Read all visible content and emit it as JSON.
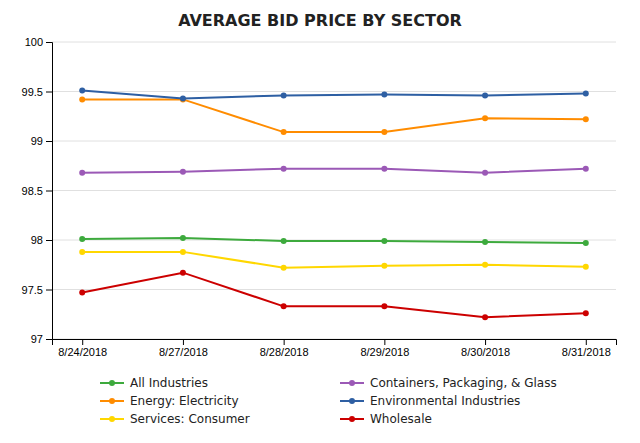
{
  "chart_data": {
    "type": "line",
    "title": "AVERAGE BID PRICE BY SECTOR",
    "categories": [
      "8/24/2018",
      "8/27/2018",
      "8/28/2018",
      "8/29/2018",
      "8/30/2018",
      "8/31/2018"
    ],
    "series": [
      {
        "name": "All Industries",
        "color": "#3DAA3D",
        "values": [
          98.01,
          98.02,
          97.99,
          97.99,
          97.98,
          97.97
        ]
      },
      {
        "name": "Energy: Electricity",
        "color": "#FF8C00",
        "values": [
          99.42,
          99.42,
          99.09,
          99.09,
          99.23,
          99.22
        ]
      },
      {
        "name": "Services: Consumer",
        "color": "#FFD700",
        "values": [
          97.88,
          97.88,
          97.72,
          97.74,
          97.75,
          97.73
        ]
      },
      {
        "name": "Containers, Packaging, & Glass",
        "color": "#9B59B6",
        "values": [
          98.68,
          98.69,
          98.72,
          98.72,
          98.68,
          98.72
        ]
      },
      {
        "name": "Environmental Industries",
        "color": "#2E5FA3",
        "values": [
          99.51,
          99.43,
          99.46,
          99.47,
          99.46,
          99.48
        ]
      },
      {
        "name": "Wholesale",
        "color": "#CC0000",
        "values": [
          97.47,
          97.67,
          97.33,
          97.33,
          97.22,
          97.26
        ]
      }
    ],
    "ylim": [
      97,
      100
    ],
    "yticks": [
      97,
      97.5,
      98,
      98.5,
      99,
      99.5,
      100
    ],
    "grid": true,
    "legend": "bottom",
    "marker": "circle"
  }
}
